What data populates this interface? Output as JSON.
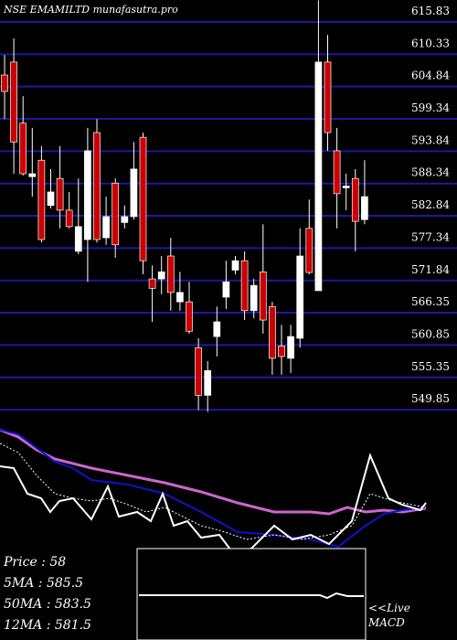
{
  "chart_data": {
    "type": "candlestick",
    "title": "NSE EMAMILTD munafasutra.pro",
    "open": [
      606.8,
      609,
      598.6,
      589.5,
      592.3,
      584.6,
      589.2,
      583.8,
      576.8,
      578.8,
      597,
      579.1,
      588.4,
      581.7,
      582.7,
      596.2,
      572.1,
      572.1,
      576,
      568.2,
      568.2,
      560.4,
      552.3,
      562.3,
      569,
      573.6,
      575.2,
      566.7,
      573.3,
      567.4,
      560.7,
      558.6,
      562,
      580.7,
      570.1,
      609,
      593.9,
      587.6,
      589.2,
      582.2
    ],
    "high": [
      610.2,
      613,
      603.2,
      597.8,
      594.7,
      590.8,
      594.7,
      586.9,
      589.2,
      597.8,
      599.3,
      586.1,
      589.2,
      584.6,
      595.4,
      597,
      574.4,
      576,
      579.1,
      573.3,
      571.6,
      562,
      558.1,
      567.4,
      575.2,
      576,
      576.8,
      572.1,
      581.4,
      568.2,
      564.3,
      564.3,
      580.7,
      585.6,
      619.5,
      613.6,
      597.8,
      590,
      590.8,
      592.3
    ],
    "low": [
      599.3,
      590,
      589.7,
      586.1,
      578.3,
      584.1,
      580.7,
      580.7,
      576.3,
      571.6,
      578.3,
      577.9,
      575.7,
      580.7,
      582.2,
      572.9,
      564.8,
      569.5,
      566.7,
      566.7,
      562.8,
      549.8,
      549.5,
      558.9,
      567,
      572.9,
      565.1,
      565.4,
      562.8,
      555.8,
      555.8,
      556.1,
      560.4,
      572.9,
      570.1,
      593.9,
      580.7,
      583.8,
      576.8,
      581.4
    ],
    "close": [
      604,
      595.4,
      590,
      590,
      578.8,
      586.9,
      583.8,
      581,
      581,
      593.9,
      578.8,
      582.7,
      577.9,
      582.7,
      590.8,
      575.2,
      570.5,
      573.3,
      569.8,
      569.8,
      563.2,
      552.3,
      556.5,
      564.8,
      571.6,
      575.2,
      566.7,
      571,
      565.1,
      558.6,
      558.9,
      562.3,
      576,
      573.2,
      609,
      597,
      586.6,
      587.9,
      581.9,
      586.1
    ],
    "ylim": [
      548,
      619.56
    ],
    "yticks": [
      615.83,
      610.33,
      604.84,
      599.34,
      593.84,
      588.34,
      582.84,
      577.34,
      571.84,
      566.35,
      560.85,
      555.35,
      549.85
    ],
    "up_color": "#ffffff",
    "down_color": "#cc0000",
    "grid_color": "#1a1aa0",
    "info": [
      "Price   : 58",
      "5MA : 585.5",
      "50MA : 583.5",
      "12MA : 581.5"
    ],
    "macd_label": [
      "<<Live",
      "MACD"
    ]
  }
}
